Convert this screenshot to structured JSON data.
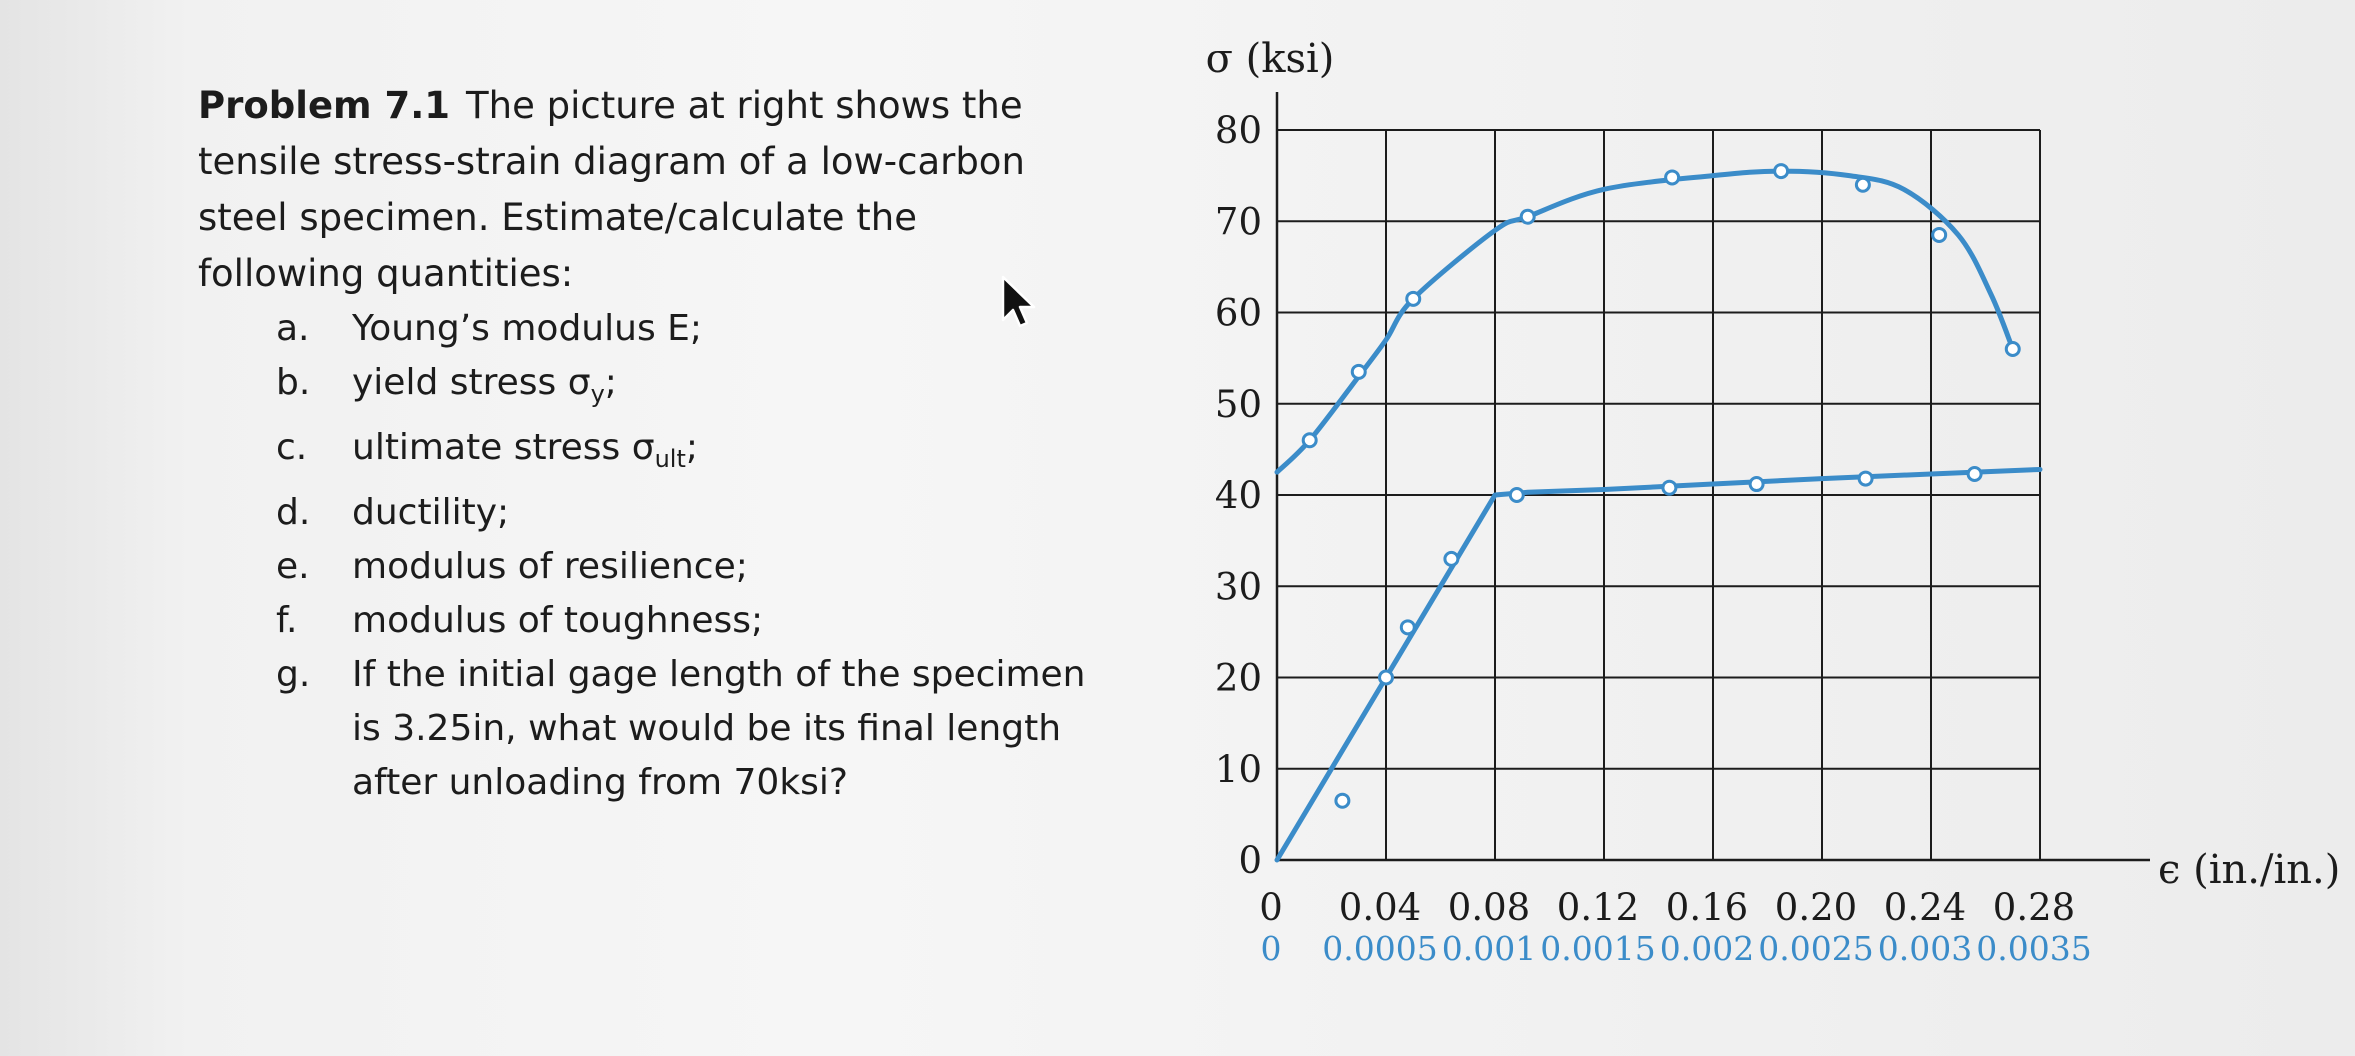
{
  "problem": {
    "title": "Problem 7.1",
    "intro_lines": [
      "The picture at right shows the",
      "tensile stress-strain diagram of a low-carbon",
      "steel specimen.  Estimate/calculate the",
      "following quantities:"
    ],
    "items": [
      {
        "letter": "a.",
        "lines": [
          "Young’s modulus E;"
        ]
      },
      {
        "letter": "b.",
        "lines": [
          "yield stress σ"
        ],
        "sub": "y",
        "tail": ";"
      },
      {
        "letter": "c.",
        "lines": [
          "ultimate stress σ"
        ],
        "sub": "ult",
        "tail": ";"
      },
      {
        "letter": "d.",
        "lines": [
          "ductility;"
        ]
      },
      {
        "letter": "e.",
        "lines": [
          "modulus of resilience;"
        ]
      },
      {
        "letter": "f.",
        "lines": [
          "modulus of toughness;"
        ]
      },
      {
        "letter": "g.",
        "lines": [
          "If the initial gage length of the specimen",
          "is 3.25in, what would be its final length",
          "after unloading from 70ksi?"
        ]
      }
    ]
  },
  "chart_data": {
    "type": "line",
    "ylabel": "σ (ksi)",
    "xlabel": "ϵ (in./in.)",
    "ylim": [
      0,
      80
    ],
    "y_ticks": [
      "0",
      "10",
      "20",
      "30",
      "40",
      "50",
      "60",
      "70",
      "80"
    ],
    "x_ticks_upper": [
      "0",
      "0.04",
      "0.08",
      "0.12",
      "0.16",
      "0.20",
      "0.24",
      "0.28"
    ],
    "x_ticks_lower": [
      "0",
      "0.0005",
      "0.001",
      "0.0015",
      "0.002",
      "0.0025",
      "0.003",
      "0.0035"
    ],
    "xlim_upper": [
      0,
      0.28
    ],
    "xlim_lower": [
      0,
      0.0035
    ],
    "grid": true,
    "colors": {
      "curve": "#3b8cc9",
      "grid": "#1c1c1c",
      "lower_ticks": "#3b8cc9"
    },
    "series": [
      {
        "axis": "upper",
        "points": [
          [
            0,
            42.5
          ],
          [
            0.012,
            46
          ],
          [
            0.03,
            53
          ],
          [
            0.04,
            57
          ],
          [
            0.05,
            61.5
          ],
          [
            0.08,
            69
          ],
          [
            0.092,
            70.5
          ],
          [
            0.12,
            73.5
          ],
          [
            0.16,
            75
          ],
          [
            0.185,
            75.5
          ],
          [
            0.21,
            75
          ],
          [
            0.23,
            73.5
          ],
          [
            0.25,
            68.5
          ],
          [
            0.262,
            62
          ],
          [
            0.27,
            56
          ]
        ],
        "markers": [
          [
            0.012,
            46
          ],
          [
            0.03,
            53.5
          ],
          [
            0.05,
            61.5
          ],
          [
            0.092,
            70.5
          ],
          [
            0.145,
            74.8
          ],
          [
            0.185,
            75.5
          ],
          [
            0.215,
            74
          ],
          [
            0.243,
            68.5
          ],
          [
            0.27,
            56
          ]
        ]
      },
      {
        "axis": "lower",
        "points": [
          [
            0,
            0
          ],
          [
            0.0005,
            20
          ],
          [
            0.001,
            40
          ],
          [
            0.00115,
            40.3
          ],
          [
            0.0015,
            40.6
          ],
          [
            0.002,
            41.2
          ],
          [
            0.0025,
            41.8
          ],
          [
            0.003,
            42.3
          ],
          [
            0.0035,
            42.8
          ]
        ],
        "markers": [
          [
            0.0003,
            6.5
          ],
          [
            0.0005,
            20
          ],
          [
            0.0006,
            25.5
          ],
          [
            0.0008,
            33
          ],
          [
            0.0011,
            40
          ],
          [
            0.0018,
            40.8
          ],
          [
            0.0022,
            41.2
          ],
          [
            0.0027,
            41.8
          ],
          [
            0.0032,
            42.3
          ]
        ]
      }
    ]
  }
}
